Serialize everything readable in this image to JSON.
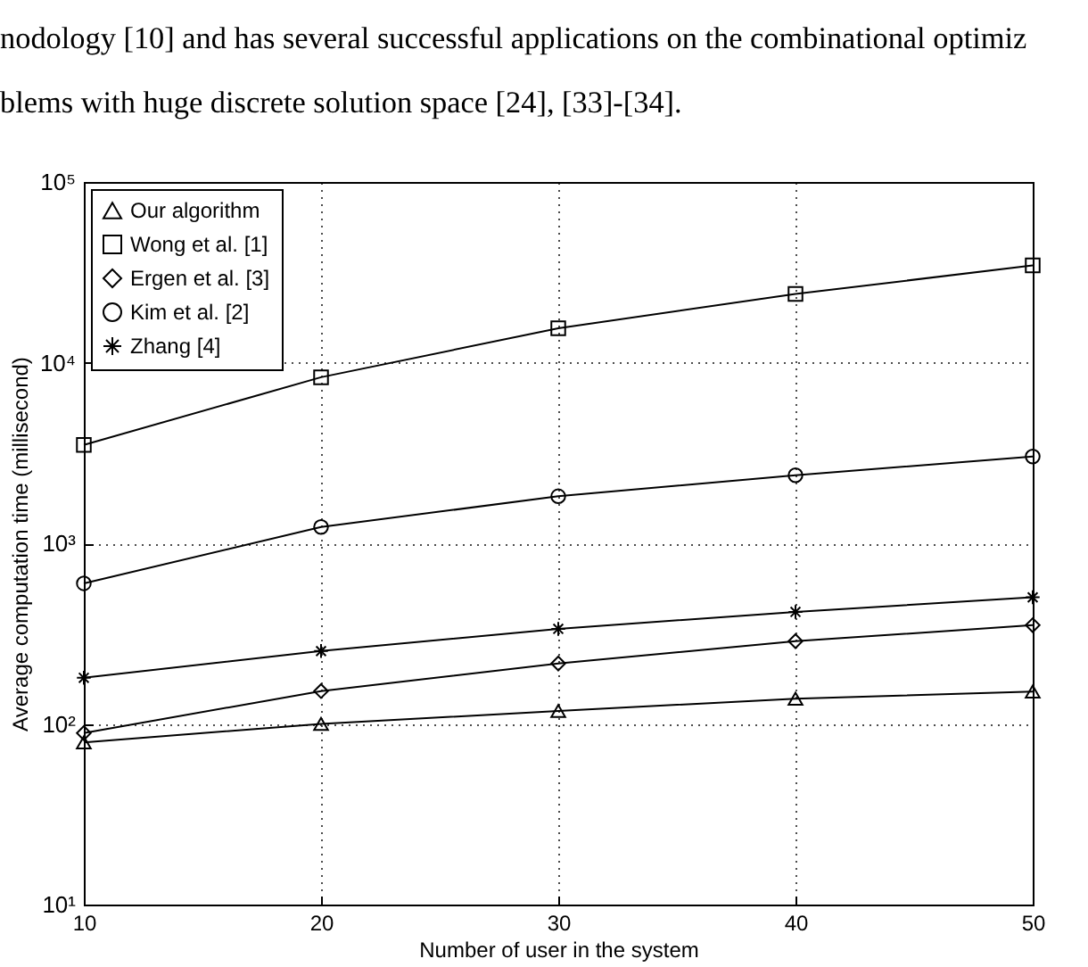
{
  "chart_data": {
    "type": "line",
    "xlabel": "Number of user in the system",
    "ylabel": "Average computation time (millisecond)",
    "annotations": [
      "nodology [10] and has several successful applications on the combinational optimiz",
      "blems with huge discrete solution space [24], [33]-[34]."
    ],
    "x": [
      10,
      20,
      30,
      40,
      50
    ],
    "series": [
      {
        "name": "Our algorithm",
        "color": "#000000",
        "marker": "triangle",
        "values": [
          79,
          100,
          118,
          138,
          151
        ]
      },
      {
        "name": "Wong et al. [1]",
        "color": "#000000",
        "marker": "square",
        "values": [
          3500,
          8300,
          15500,
          24000,
          34500
        ]
      },
      {
        "name": "Ergen et al. [3]",
        "color": "#000000",
        "marker": "diamond",
        "values": [
          89,
          152,
          216,
          287,
          352
        ]
      },
      {
        "name": "Kim et al. [2]",
        "color": "#000000",
        "marker": "circle",
        "values": [
          600,
          1230,
          1820,
          2380,
          3020
        ]
      },
      {
        "name": "Zhang [4]",
        "color": "#000000",
        "marker": "cross",
        "values": [
          180,
          253,
          336,
          417,
          502
        ]
      }
    ],
    "log": "y",
    "xlim": [
      10,
      50
    ],
    "xticks": [
      10,
      20,
      30,
      40,
      50
    ],
    "ylim": [
      10,
      100000
    ],
    "yticks": [
      {
        "value": 10,
        "label": "10¹"
      },
      {
        "value": 100,
        "label": "10²"
      },
      {
        "value": 1000,
        "label": "10³"
      },
      {
        "value": 10000,
        "label": "10⁴"
      },
      {
        "value": 100000,
        "label": "10⁵"
      }
    ],
    "grid": true,
    "legend": "top left",
    "line_style": "solid"
  }
}
